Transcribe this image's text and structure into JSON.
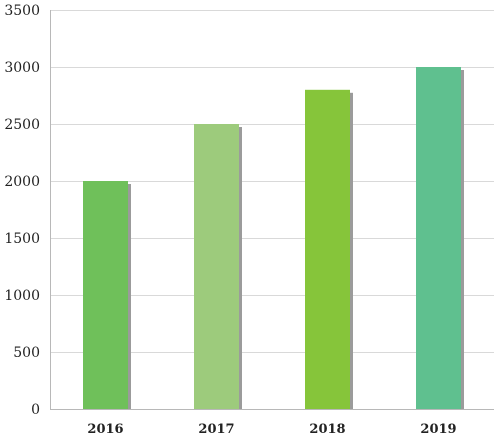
{
  "chart_data": {
    "type": "bar",
    "title": "",
    "xlabel": "",
    "ylabel": "",
    "categories": [
      "2016",
      "2017",
      "2018",
      "2019"
    ],
    "values": [
      2000,
      2500,
      2800,
      3000
    ],
    "ylim": [
      0,
      3500
    ],
    "yticks": [
      0,
      500,
      1000,
      1500,
      2000,
      2500,
      3000,
      3500
    ],
    "grid": true,
    "legend": "none",
    "bar_colors": [
      "#6fc05a",
      "#9dcb7c",
      "#86c53a",
      "#5fc08f"
    ],
    "shadow_color": "#9b9b9b",
    "grid_color": "#d9d9d9",
    "axis_color": "#b8b8b8",
    "text_color": "#222222"
  }
}
